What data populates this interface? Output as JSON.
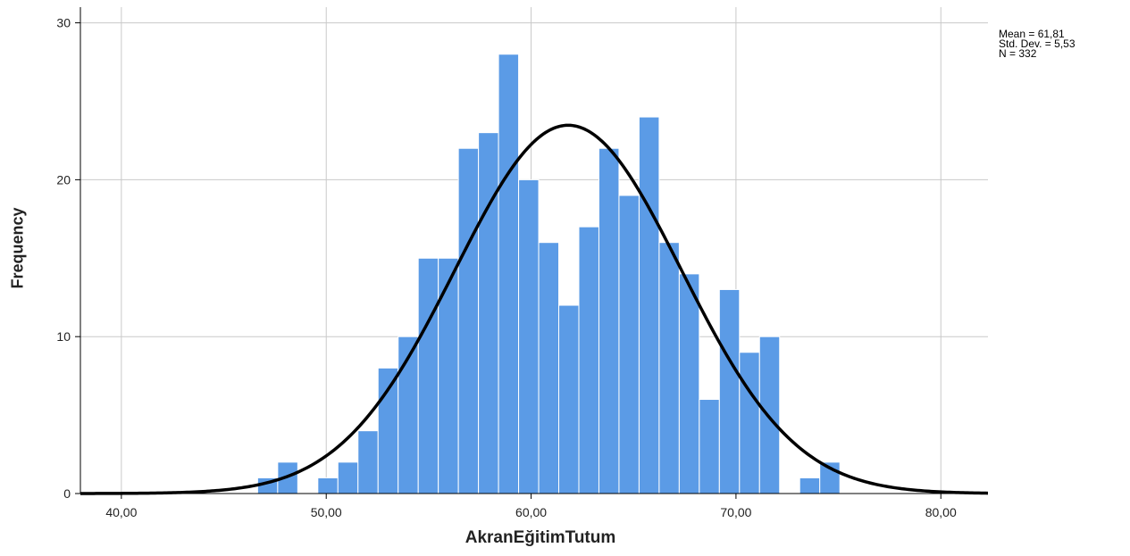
{
  "chart_data": {
    "type": "bar",
    "subtype": "histogram",
    "xlabel": "AkranEğitimTutum",
    "ylabel": "Frequency",
    "xlim": [
      38,
      82.3
    ],
    "ylim": [
      0,
      31
    ],
    "x_ticks": [
      40,
      50,
      60,
      70,
      80
    ],
    "x_tick_labels": [
      "40,00",
      "50,00",
      "60,00",
      "70,00",
      "80,00"
    ],
    "y_ticks": [
      0,
      10,
      20,
      30
    ],
    "y_tick_labels": [
      "0",
      "10",
      "20",
      "30"
    ],
    "grid": true,
    "bar_color": "#5b9be6",
    "bin_width": 0.98,
    "bins": [
      {
        "start": 46.65,
        "count": 1
      },
      {
        "start": 47.63,
        "count": 2
      },
      {
        "start": 49.59,
        "count": 1
      },
      {
        "start": 50.57,
        "count": 2
      },
      {
        "start": 51.55,
        "count": 4
      },
      {
        "start": 52.53,
        "count": 8
      },
      {
        "start": 53.51,
        "count": 10
      },
      {
        "start": 54.49,
        "count": 15
      },
      {
        "start": 55.47,
        "count": 15
      },
      {
        "start": 56.45,
        "count": 22
      },
      {
        "start": 57.43,
        "count": 23
      },
      {
        "start": 58.41,
        "count": 28
      },
      {
        "start": 59.39,
        "count": 20
      },
      {
        "start": 60.37,
        "count": 16
      },
      {
        "start": 61.35,
        "count": 12
      },
      {
        "start": 62.33,
        "count": 17
      },
      {
        "start": 63.31,
        "count": 22
      },
      {
        "start": 64.29,
        "count": 19
      },
      {
        "start": 65.27,
        "count": 24
      },
      {
        "start": 66.25,
        "count": 16
      },
      {
        "start": 67.23,
        "count": 14
      },
      {
        "start": 68.21,
        "count": 6
      },
      {
        "start": 69.19,
        "count": 13
      },
      {
        "start": 70.17,
        "count": 9
      },
      {
        "start": 71.15,
        "count": 10
      },
      {
        "start": 73.11,
        "count": 1
      },
      {
        "start": 74.09,
        "count": 2
      }
    ],
    "normal_curve": {
      "mean": 61.81,
      "std": 5.53,
      "n": 332,
      "color": "#000000"
    },
    "stats_text": [
      "Mean = 61,81",
      "Std. Dev. = 5,53",
      "N = 332"
    ]
  }
}
